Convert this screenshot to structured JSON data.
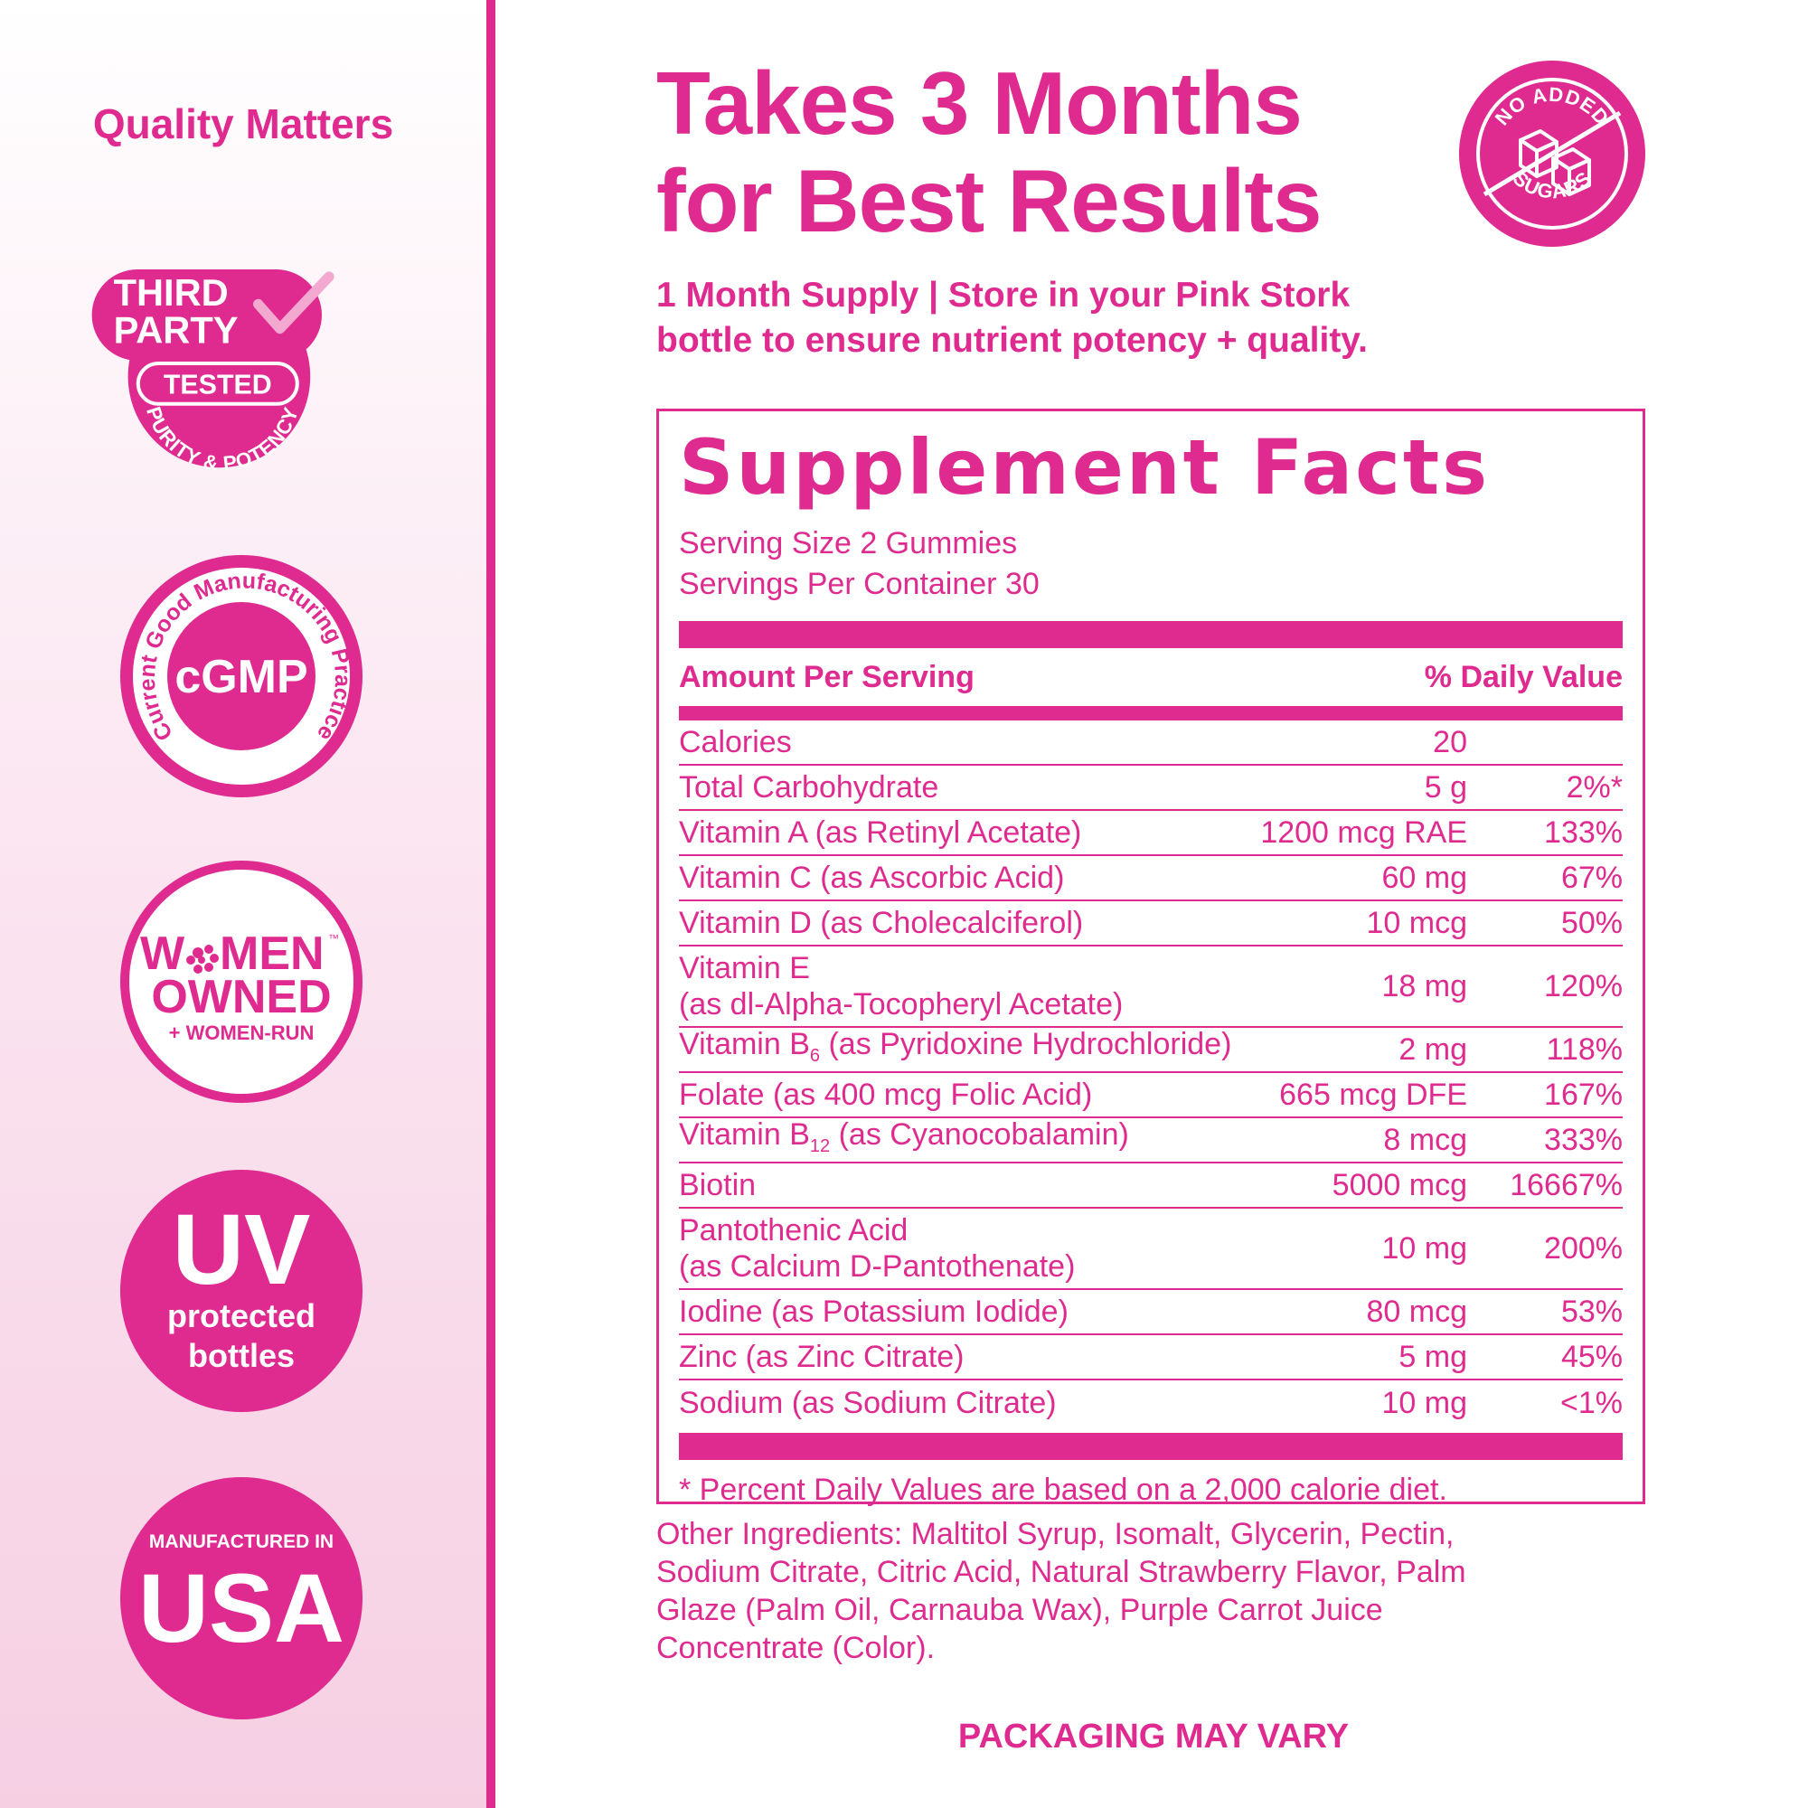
{
  "colors": {
    "brand": "#df2b8f",
    "white": "#ffffff",
    "sidebar_light": "#fbe6f1",
    "sidebar_dark": "#f6cfe3"
  },
  "sidebar": {
    "title": "Quality Matters",
    "badges": {
      "third_party": {
        "line1": "THIRD",
        "line2": "PARTY",
        "tested": "TESTED",
        "arc": "PURITY & POTENCY"
      },
      "cgmp": {
        "center": "cGMP",
        "arc": "Current Good Manufacturing Practice"
      },
      "women": {
        "line1_a": "W",
        "line1_b": "MEN",
        "tm": "™",
        "line2": "OWNED",
        "line3": "+ WOMEN-RUN"
      },
      "uv": {
        "big": "UV",
        "line1": "protected",
        "line2": "bottles"
      },
      "usa": {
        "top": "MANUFACTURED IN",
        "big": "USA"
      }
    }
  },
  "headline": {
    "line1": "Takes 3 Months",
    "line2": "for Best Results"
  },
  "subline": {
    "line1": "1 Month Supply | Store in your Pink Stork",
    "line2": "bottle to ensure nutrient potency + quality."
  },
  "sugar_badge": {
    "top": "NO ADDED",
    "bottom": "SUGARS",
    "icon": "sugar-cubes-icon"
  },
  "facts": {
    "title": "Supplement Facts",
    "serving_size": "Serving Size 2 Gummies",
    "servings_per_container": "Servings Per Container 30",
    "header_left": "Amount Per Serving",
    "header_right": "% Daily Value",
    "rows": [
      {
        "name": "Calories",
        "amount": "20",
        "dv": ""
      },
      {
        "name": "Total Carbohydrate",
        "amount": "5 g",
        "dv": "2%*"
      },
      {
        "name": "Vitamin A (as Retinyl Acetate)",
        "amount": "1200 mcg RAE",
        "dv": "133%"
      },
      {
        "name": "Vitamin C (as Ascorbic Acid)",
        "amount": "60 mg",
        "dv": "67%"
      },
      {
        "name": "Vitamin D (as Cholecalciferol)",
        "amount": "10 mcg",
        "dv": "50%"
      },
      {
        "name": "Vitamin E",
        "name2": "(as dl-Alpha-Tocopheryl Acetate)",
        "amount": "18 mg",
        "dv": "120%"
      },
      {
        "name_pre": "Vitamin B",
        "sub": "6",
        "name_post": " (as Pyridoxine Hydrochloride)",
        "amount": "2 mg",
        "dv": "118%"
      },
      {
        "name": "Folate (as 400 mcg Folic Acid)",
        "amount": "665 mcg DFE",
        "dv": "167%"
      },
      {
        "name_pre": "Vitamin B",
        "sub": "12",
        "name_post": " (as Cyanocobalamin)",
        "amount": "8 mcg",
        "dv": "333%"
      },
      {
        "name": "Biotin",
        "amount": "5000 mcg",
        "dv": "16667%"
      },
      {
        "name": "Pantothenic Acid",
        "name2": "(as Calcium D-Pantothenate)",
        "amount": "10 mg",
        "dv": "200%"
      },
      {
        "name": "Iodine (as Potassium Iodide)",
        "amount": "80 mcg",
        "dv": "53%"
      },
      {
        "name": "Zinc (as Zinc Citrate)",
        "amount": "5 mg",
        "dv": "45%"
      },
      {
        "name": "Sodium (as Sodium Citrate)",
        "amount": "10 mg",
        "dv": "<1%"
      }
    ],
    "footnote": "* Percent Daily Values are based on a 2,000 calorie diet."
  },
  "ingredients": {
    "line1": "Other Ingredients: Maltitol Syrup, Isomalt, Glycerin, Pectin,",
    "line2": "Sodium Citrate, Citric Acid, Natural Strawberry Flavor, Palm",
    "line3": "Glaze (Palm Oil, Carnauba Wax), Purple Carrot Juice",
    "line4": "Concentrate (Color)."
  },
  "packaging": "PACKAGING MAY VARY"
}
